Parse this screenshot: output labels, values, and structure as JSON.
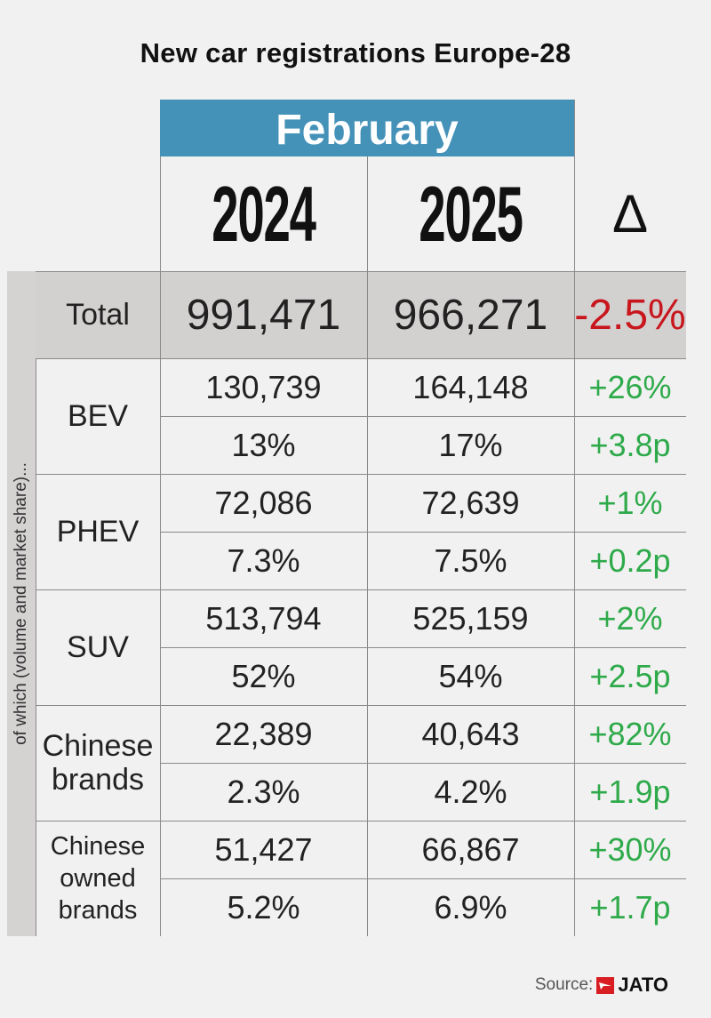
{
  "title": "New car registrations Europe-28",
  "month": "February",
  "side_label": "of which (volume and market share)...",
  "source_label": "Source:",
  "source_brand": "JATO",
  "colors": {
    "header": "#4592b9",
    "positive": "#2eaa4a",
    "negative": "#c8161d",
    "total_band": "#d3d0d0"
  },
  "chart_data": {
    "type": "table",
    "columns": [
      "2024",
      "2025",
      "Δ"
    ],
    "total": {
      "label": "Total",
      "values": [
        "991,471",
        "966,271",
        "-2.5%"
      ]
    },
    "groups": [
      {
        "label": "BEV",
        "rows": [
          [
            "130,739",
            "164,148",
            "+26%"
          ],
          [
            "13%",
            "17%",
            "+3.8p"
          ]
        ]
      },
      {
        "label": "PHEV",
        "rows": [
          [
            "72,086",
            "72,639",
            "+1%"
          ],
          [
            "7.3%",
            "7.5%",
            "+0.2p"
          ]
        ]
      },
      {
        "label": "SUV",
        "rows": [
          [
            "513,794",
            "525,159",
            "+2%"
          ],
          [
            "52%",
            "54%",
            "+2.5p"
          ]
        ]
      },
      {
        "label": "Chinese brands",
        "rows": [
          [
            "22,389",
            "40,643",
            "+82%"
          ],
          [
            "2.3%",
            "4.2%",
            "+1.9p"
          ]
        ]
      },
      {
        "label": "Chinese owned brands",
        "rows": [
          [
            "51,427",
            "66,867",
            "+30%"
          ],
          [
            "5.2%",
            "6.9%",
            "+1.7p"
          ]
        ]
      }
    ]
  }
}
